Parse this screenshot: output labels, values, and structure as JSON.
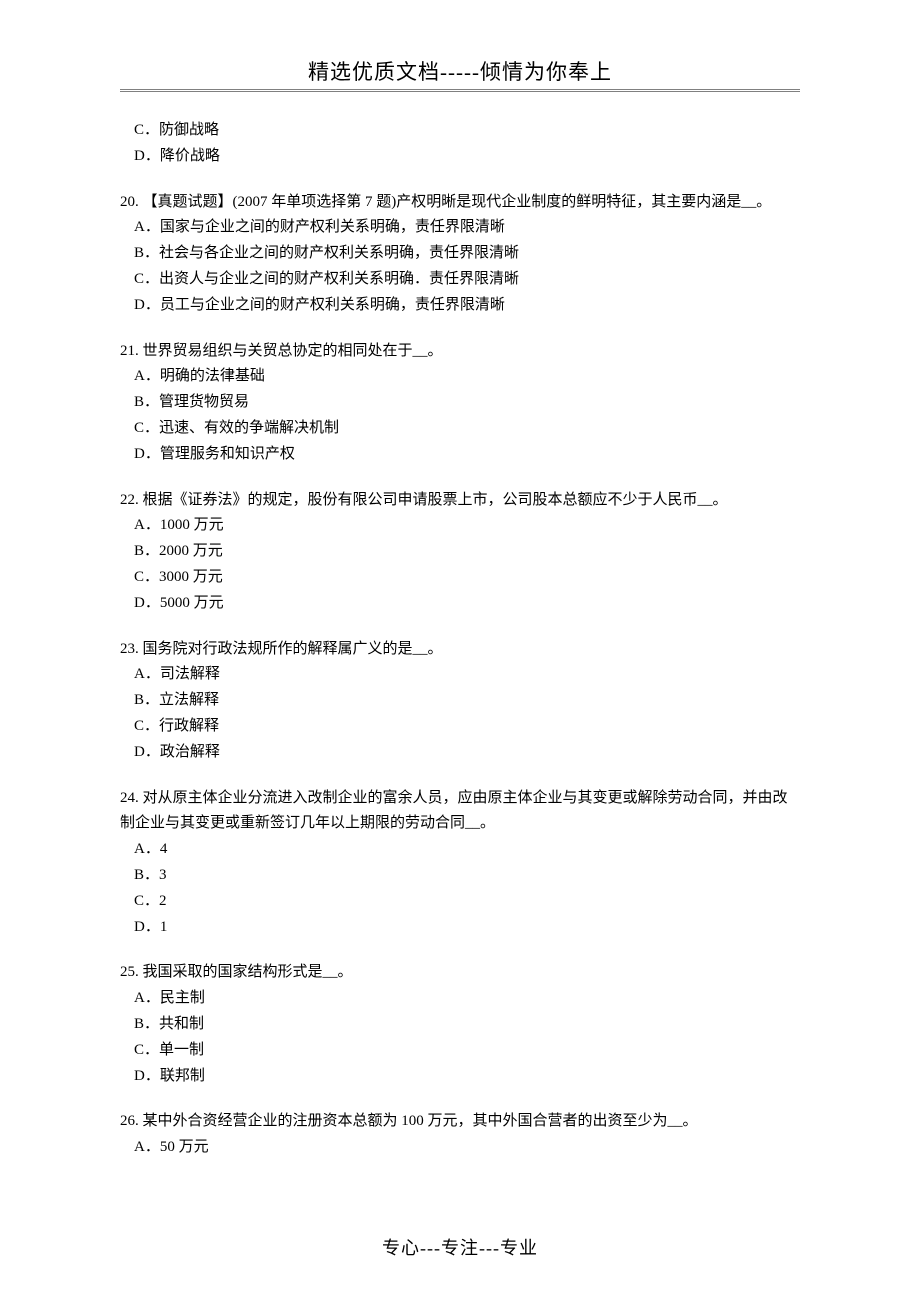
{
  "header": "精选优质文档-----倾情为你奉上",
  "footer": "专心---专注---专业",
  "orphan_options": {
    "C": "C．防御战略",
    "D": "D．降价战略"
  },
  "questions": [
    {
      "stem": "20. 【真题试题】(2007 年单项选择第 7 题)产权明晰是现代企业制度的鲜明特征，其主要内涵是__。",
      "opts": [
        "A．国家与企业之间的财产权利关系明确，责任界限清晰",
        "B．社会与各企业之间的财产权利关系明确，责任界限清晰",
        "C．出资人与企业之间的财产权利关系明确．责任界限清晰",
        "D．员工与企业之间的财产权利关系明确，责任界限清晰"
      ]
    },
    {
      "stem": "21. 世界贸易组织与关贸总协定的相同处在于__。",
      "opts": [
        "A．明确的法律基础",
        "B．管理货物贸易",
        "C．迅速、有效的争端解决机制",
        "D．管理服务和知识产权"
      ]
    },
    {
      "stem": "22. 根据《证券法》的规定，股份有限公司申请股票上市，公司股本总额应不少于人民币__。",
      "opts": [
        "A．1000 万元",
        "B．2000 万元",
        "C．3000 万元",
        "D．5000 万元"
      ]
    },
    {
      "stem": "23. 国务院对行政法规所作的解释属广义的是__。",
      "opts": [
        "A．司法解释",
        "B．立法解释",
        "C．行政解释",
        "D．政治解释"
      ]
    },
    {
      "stem": "24. 对从原主体企业分流进入改制企业的富余人员，应由原主体企业与其变更或解除劳动合同，并由改制企业与其变更或重新签订几年以上期限的劳动合同__。",
      "opts": [
        "A．4",
        "B．3",
        "C．2",
        "D．1"
      ]
    },
    {
      "stem": "25. 我国采取的国家结构形式是__。",
      "opts": [
        "A．民主制",
        "B．共和制",
        "C．单一制",
        "D．联邦制"
      ]
    },
    {
      "stem": "26. 某中外合资经营企业的注册资本总额为 100 万元，其中外国合营者的出资至少为__。",
      "opts": [
        "A．50 万元"
      ]
    }
  ]
}
